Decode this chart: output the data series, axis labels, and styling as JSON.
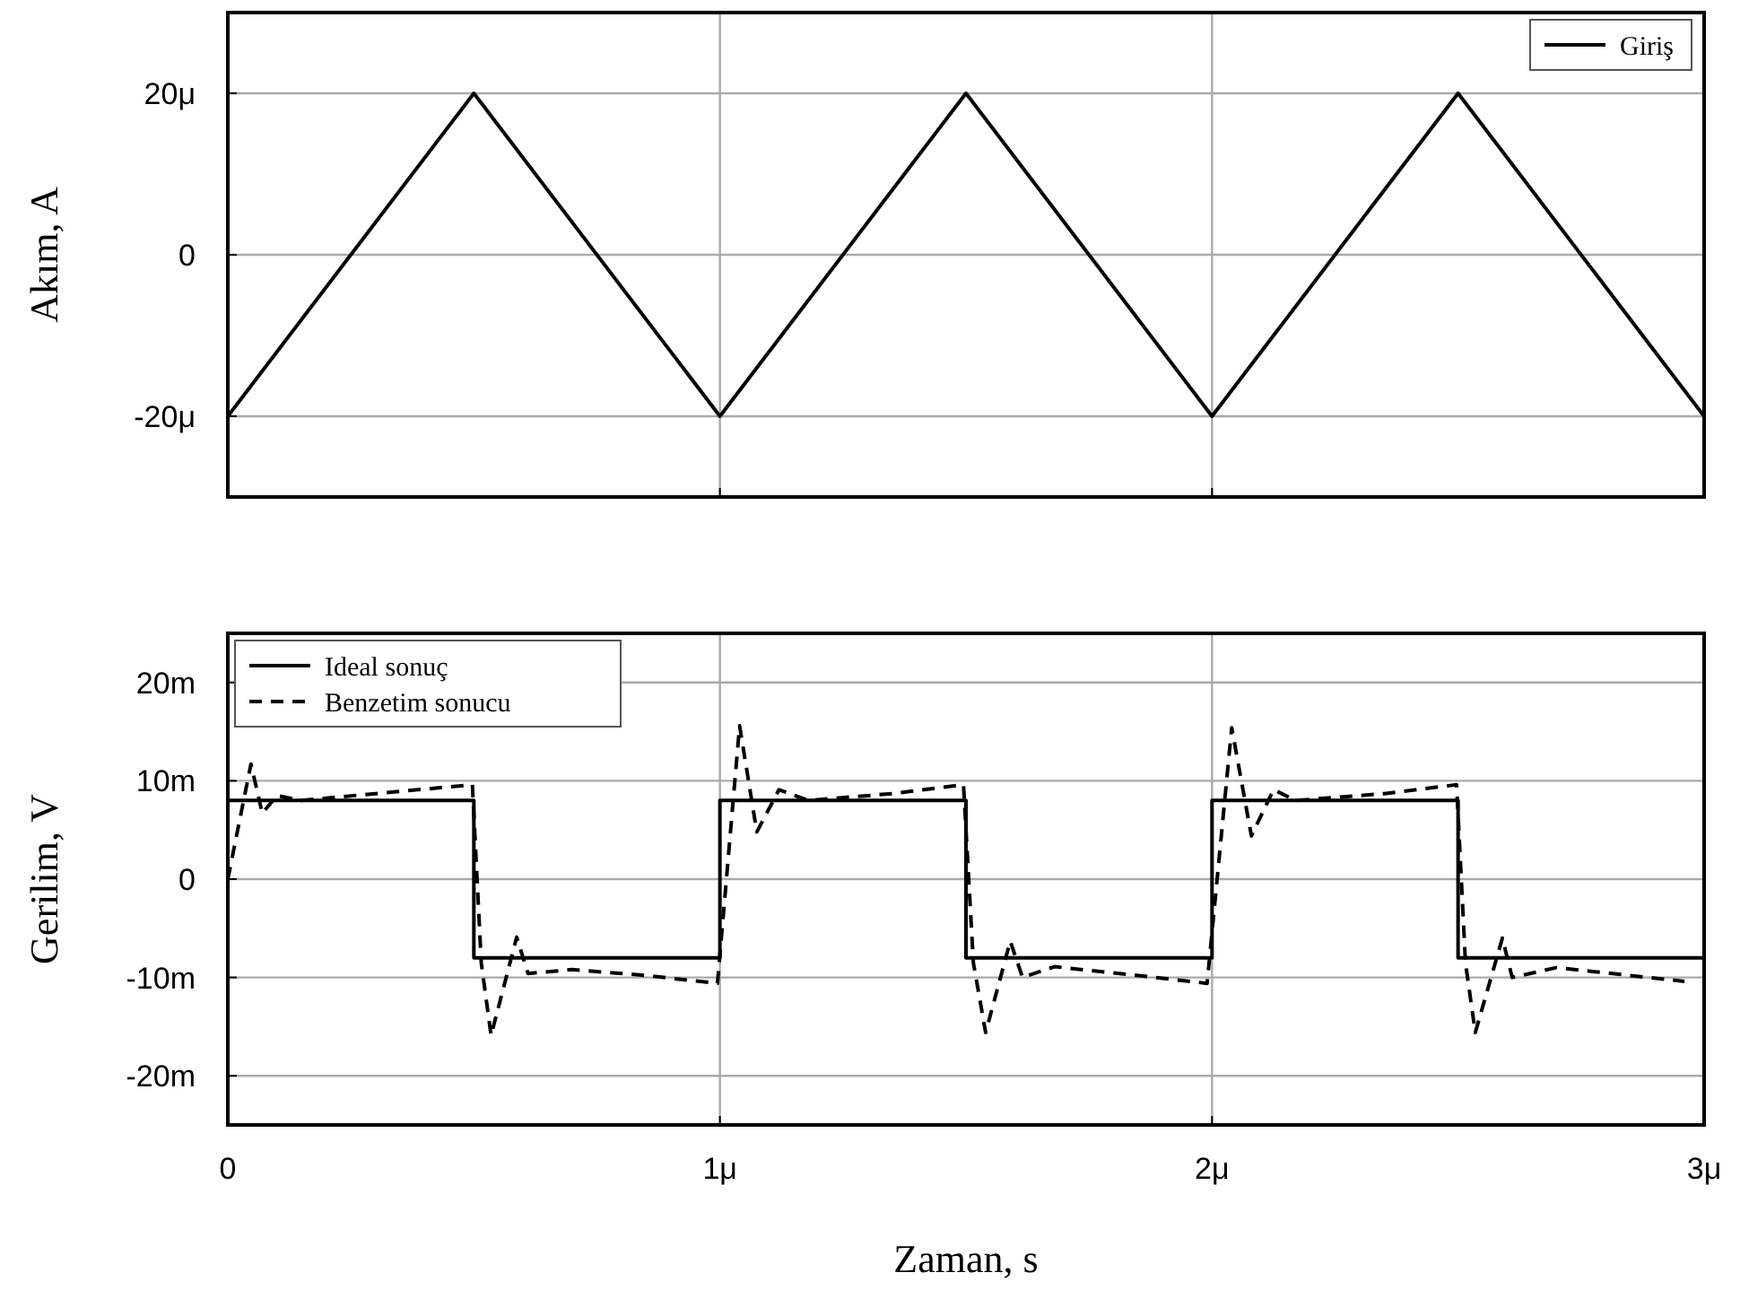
{
  "chart_data": [
    {
      "type": "line",
      "ylabel": "Akım, A",
      "xlim": [
        0,
        3
      ],
      "xticks": [
        {
          "value": 1,
          "label": null
        },
        {
          "value": 2,
          "label": null
        }
      ],
      "ylim": [
        -30,
        30
      ],
      "yticks": [
        {
          "value": -20,
          "label": "-20μ"
        },
        0,
        {
          "value": 20,
          "label": "20μ"
        }
      ],
      "tick_labels": "y",
      "grid": true,
      "legend": "top right",
      "series": [
        {
          "name": "Giriş",
          "color": "#000000",
          "line_style": "solid",
          "x": [
            0,
            0.5,
            1,
            1.5,
            2,
            2.5,
            3
          ],
          "values": [
            -20,
            20,
            -20,
            20,
            -20,
            20,
            -20
          ]
        }
      ]
    },
    {
      "type": "line",
      "xlabel": "Zaman, s",
      "ylabel": "Gerilim, V",
      "xlim": [
        0,
        3
      ],
      "xticks": [
        0,
        {
          "value": 1,
          "label": "1μ"
        },
        {
          "value": 2,
          "label": "2μ"
        },
        {
          "value": 3,
          "label": "3μ"
        }
      ],
      "ylim": [
        -25,
        25
      ],
      "yticks": [
        {
          "value": -20,
          "label": "-20m"
        },
        {
          "value": -10,
          "label": "-10m"
        },
        0,
        {
          "value": 10,
          "label": "10m"
        },
        {
          "value": 20,
          "label": "20m"
        }
      ],
      "grid": true,
      "legend": "top left",
      "series": [
        {
          "name": "Ideal sonuç",
          "color": "#000000",
          "line_style": "solid",
          "x": [
            0,
            0,
            0.5,
            0.5,
            1,
            1,
            1.5,
            1.5,
            2,
            2,
            2.5,
            2.5,
            3
          ],
          "values": [
            0,
            8,
            8,
            -8,
            -8,
            8,
            8,
            -8,
            -8,
            8,
            8,
            -8,
            -8
          ]
        },
        {
          "name": "Benzetim sonucu",
          "color": "#000000",
          "line_style": "dashed",
          "x": [
            0,
            0.047,
            0.07,
            0.1,
            0.15,
            0.3,
            0.497,
            0.515,
            0.535,
            0.587,
            0.61,
            0.7,
            0.85,
            0.995,
            1.04,
            1.075,
            1.12,
            1.18,
            1.35,
            1.495,
            1.515,
            1.54,
            1.59,
            1.615,
            1.68,
            1.85,
            1.99,
            2.04,
            2.08,
            2.125,
            2.17,
            2.35,
            2.497,
            2.515,
            2.535,
            2.59,
            2.61,
            2.7,
            2.85,
            2.96
          ],
          "values": [
            0,
            11.7,
            6.7,
            8.5,
            8.0,
            8.7,
            9.6,
            -8.5,
            -15.9,
            -5.9,
            -9.6,
            -9.2,
            -9.8,
            -10.6,
            15.6,
            4.8,
            9.1,
            8.0,
            8.7,
            9.6,
            -8.5,
            -15.6,
            -6.3,
            -10,
            -8.9,
            -9.8,
            -10.6,
            15.4,
            4.4,
            9.1,
            8.0,
            8.7,
            9.6,
            -8.5,
            -15.6,
            -6.0,
            -10,
            -9.0,
            -9.8,
            -10.4
          ]
        }
      ]
    }
  ]
}
